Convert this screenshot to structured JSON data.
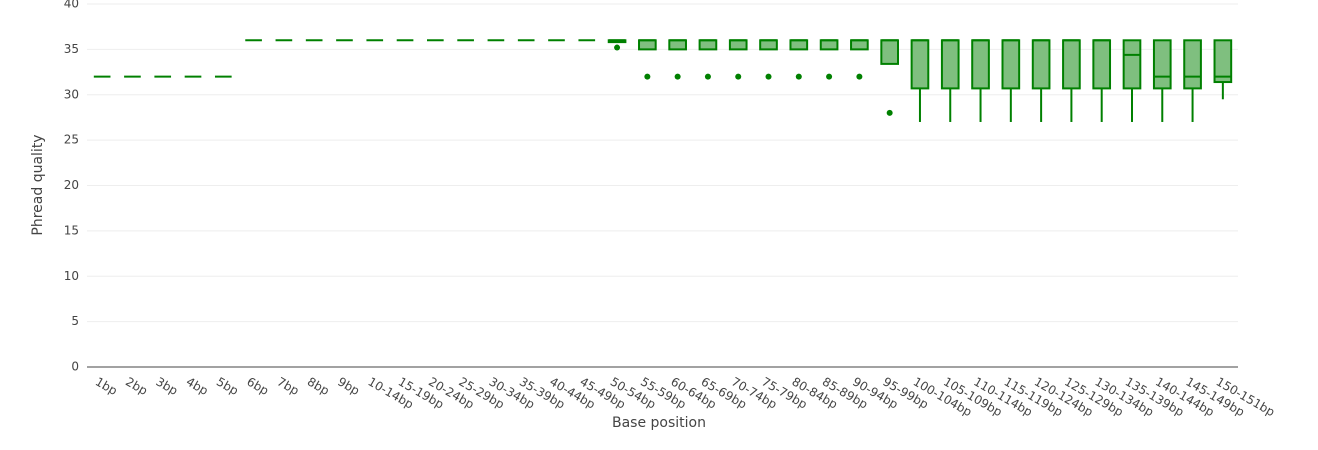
{
  "chart_data": {
    "type": "box",
    "x_label": "Base position",
    "y_label": "Phread quality",
    "categories": [
      "1bp",
      "2bp",
      "3bp",
      "4bp",
      "5bp",
      "6bp",
      "7bp",
      "8bp",
      "9bp",
      "10-14bp",
      "15-19bp",
      "20-24bp",
      "25-29bp",
      "30-34bp",
      "35-39bp",
      "40-44bp",
      "45-49bp",
      "50-54bp",
      "55-59bp",
      "60-64bp",
      "65-69bp",
      "70-74bp",
      "75-79bp",
      "80-84bp",
      "85-89bp",
      "90-94bp",
      "95-99bp",
      "100-104bp",
      "105-109bp",
      "110-114bp",
      "115-119bp",
      "120-124bp",
      "125-129bp",
      "130-134bp",
      "135-139bp",
      "140-144bp",
      "145-149bp",
      "150-151bp"
    ],
    "whislo": [
      32,
      32,
      32,
      32,
      32,
      36,
      36,
      36,
      36,
      36,
      36,
      36,
      36,
      36,
      36,
      36,
      36,
      35.8,
      35,
      35,
      35,
      35,
      35,
      35,
      35,
      35,
      33.4,
      27,
      27,
      27,
      27,
      27,
      27,
      27,
      27,
      27,
      27,
      29.5
    ],
    "q1": [
      32,
      32,
      32,
      32,
      32,
      36,
      36,
      36,
      36,
      36,
      36,
      36,
      36,
      36,
      36,
      36,
      36,
      35.8,
      35,
      35,
      35,
      35,
      35,
      35,
      35,
      35,
      33.4,
      30.7,
      30.7,
      30.7,
      30.7,
      30.7,
      30.7,
      30.7,
      30.7,
      30.7,
      30.7,
      31.4
    ],
    "median": [
      32,
      32,
      32,
      32,
      32,
      36,
      36,
      36,
      36,
      36,
      36,
      36,
      36,
      36,
      36,
      36,
      36,
      36,
      36,
      36,
      36,
      36,
      36,
      36,
      36,
      36,
      36,
      36,
      36,
      36,
      36,
      36,
      36,
      36,
      34.4,
      32,
      32,
      32
    ],
    "q3": [
      32,
      32,
      32,
      32,
      32,
      36,
      36,
      36,
      36,
      36,
      36,
      36,
      36,
      36,
      36,
      36,
      36,
      36,
      36,
      36,
      36,
      36,
      36,
      36,
      36,
      36,
      36,
      36,
      36,
      36,
      36,
      36,
      36,
      36,
      36,
      36,
      36,
      36
    ],
    "whishi": [
      32,
      32,
      32,
      32,
      32,
      36,
      36,
      36,
      36,
      36,
      36,
      36,
      36,
      36,
      36,
      36,
      36,
      36,
      36,
      36,
      36,
      36,
      36,
      36,
      36,
      36,
      36,
      36,
      36,
      36,
      36,
      36,
      36,
      36,
      36,
      36,
      36,
      36
    ],
    "outliers": [
      [],
      [],
      [],
      [],
      [],
      [],
      [],
      [],
      [],
      [],
      [],
      [],
      [],
      [],
      [],
      [],
      [],
      [
        35.2
      ],
      [
        32
      ],
      [
        32
      ],
      [
        32
      ],
      [
        32
      ],
      [
        32
      ],
      [
        32
      ],
      [
        32
      ],
      [
        32
      ],
      [
        28
      ],
      [],
      [],
      [],
      [],
      [],
      [],
      [],
      [],
      [],
      [],
      []
    ],
    "color": "#008000",
    "fill": "#7fbf7f",
    "ylim": [
      0,
      40
    ],
    "yticks": [
      0,
      5,
      10,
      15,
      20,
      25,
      30,
      35,
      40
    ],
    "grid": true
  }
}
